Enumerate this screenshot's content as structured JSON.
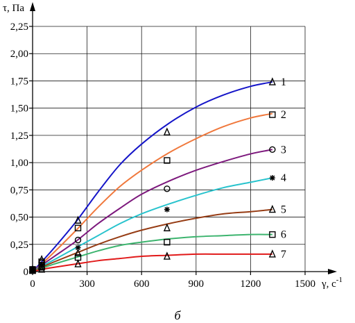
{
  "chart_data": {
    "type": "line",
    "xlabel": "γ, с",
    "xlabel_exponent": "-1",
    "ylabel": "τ, Па",
    "caption": "б",
    "xlim": [
      0,
      1500
    ],
    "ylim": [
      0,
      2.25
    ],
    "x_ticks": [
      0,
      300,
      600,
      900,
      1200,
      1500
    ],
    "x_tick_labels": [
      "0",
      "300",
      "600",
      "900",
      "1200",
      "1500"
    ],
    "y_ticks": [
      0,
      0.25,
      0.5,
      0.75,
      1.0,
      1.25,
      1.5,
      1.75,
      2.0,
      2.25
    ],
    "y_tick_labels": [
      "0",
      "0,25",
      "0,50",
      "0,75",
      "1,00",
      "1,25",
      "1,50",
      "1,75",
      "2,00",
      "2,25"
    ],
    "grid": true,
    "series": [
      {
        "label": "1",
        "color": "#1515c8",
        "marker": "triangle",
        "curve": {
          "x": [
            0,
            50,
            120,
            240,
            360,
            480,
            600,
            750,
            900,
            1050,
            1200,
            1320
          ],
          "y": [
            0,
            0.09,
            0.22,
            0.46,
            0.73,
            0.98,
            1.17,
            1.36,
            1.51,
            1.62,
            1.7,
            1.74
          ]
        },
        "points": {
          "x": [
            0,
            50,
            250,
            740,
            1320
          ],
          "y": [
            0.02,
            0.11,
            0.47,
            1.28,
            1.74
          ]
        }
      },
      {
        "label": "2",
        "color": "#f0783c",
        "marker": "square",
        "curve": {
          "x": [
            0,
            50,
            120,
            240,
            360,
            480,
            600,
            750,
            900,
            1050,
            1200,
            1320
          ],
          "y": [
            0,
            0.07,
            0.18,
            0.38,
            0.59,
            0.78,
            0.93,
            1.09,
            1.22,
            1.33,
            1.41,
            1.45
          ]
        },
        "points": {
          "x": [
            0,
            50,
            250,
            740,
            1320
          ],
          "y": [
            0.02,
            0.09,
            0.4,
            1.02,
            1.44
          ]
        }
      },
      {
        "label": "3",
        "color": "#7d197d",
        "marker": "circle",
        "curve": {
          "x": [
            0,
            50,
            120,
            240,
            360,
            480,
            600,
            750,
            900,
            1050,
            1200,
            1320
          ],
          "y": [
            0,
            0.06,
            0.14,
            0.28,
            0.44,
            0.58,
            0.71,
            0.83,
            0.93,
            1.01,
            1.08,
            1.12
          ]
        },
        "points": {
          "x": [
            0,
            50,
            250,
            740,
            1320
          ],
          "y": [
            0.02,
            0.08,
            0.29,
            0.76,
            1.12
          ]
        }
      },
      {
        "label": "4",
        "color": "#28c3cd",
        "marker": "asterisk",
        "curve": {
          "x": [
            0,
            50,
            120,
            240,
            360,
            480,
            600,
            750,
            900,
            1050,
            1200,
            1320
          ],
          "y": [
            0,
            0.05,
            0.11,
            0.22,
            0.33,
            0.44,
            0.53,
            0.62,
            0.7,
            0.77,
            0.82,
            0.86
          ]
        },
        "points": {
          "x": [
            0,
            50,
            250,
            740,
            1320
          ],
          "y": [
            0.01,
            0.06,
            0.22,
            0.57,
            0.86
          ]
        }
      },
      {
        "label": "5",
        "color": "#963c14",
        "marker": "triangle",
        "curve": {
          "x": [
            0,
            50,
            120,
            240,
            360,
            480,
            600,
            750,
            900,
            1050,
            1200,
            1320
          ],
          "y": [
            0,
            0.04,
            0.09,
            0.17,
            0.25,
            0.32,
            0.38,
            0.44,
            0.49,
            0.53,
            0.55,
            0.57
          ]
        },
        "points": {
          "x": [
            0,
            50,
            250,
            740,
            1320
          ],
          "y": [
            0.01,
            0.05,
            0.17,
            0.4,
            0.57
          ]
        }
      },
      {
        "label": "6",
        "color": "#3cb46e",
        "marker": "square",
        "curve": {
          "x": [
            0,
            50,
            120,
            240,
            360,
            480,
            600,
            750,
            900,
            1050,
            1200,
            1320
          ],
          "y": [
            0,
            0.03,
            0.07,
            0.13,
            0.19,
            0.24,
            0.27,
            0.3,
            0.32,
            0.33,
            0.34,
            0.34
          ]
        },
        "points": {
          "x": [
            0,
            50,
            250,
            740,
            1320
          ],
          "y": [
            0.01,
            0.04,
            0.13,
            0.27,
            0.34
          ]
        }
      },
      {
        "label": "7",
        "color": "#e11919",
        "marker": "triangle",
        "curve": {
          "x": [
            0,
            50,
            120,
            240,
            360,
            480,
            600,
            750,
            900,
            1050,
            1200,
            1320
          ],
          "y": [
            0,
            0.02,
            0.04,
            0.07,
            0.1,
            0.12,
            0.14,
            0.15,
            0.16,
            0.16,
            0.16,
            0.16
          ]
        },
        "points": {
          "x": [
            0,
            50,
            250,
            740,
            1320
          ],
          "y": [
            0.01,
            0.02,
            0.07,
            0.14,
            0.16
          ]
        }
      }
    ]
  }
}
